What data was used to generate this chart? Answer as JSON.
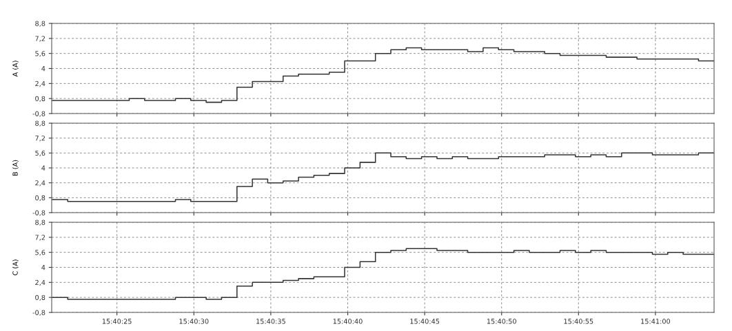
{
  "chart_data": [
    {
      "type": "step",
      "ylabel": "A (A)",
      "tick_labels": "y",
      "grid": true,
      "line_style": "solid",
      "x": [
        15.672444,
        15.672722,
        15.673,
        15.673278,
        15.673556,
        15.673833,
        15.674111,
        15.674389,
        15.674667,
        15.674944,
        15.675222,
        15.6755,
        15.675778,
        15.676056,
        15.676333,
        15.676611,
        15.676889,
        15.677167,
        15.677444,
        15.677722,
        15.678,
        15.678278,
        15.678556,
        15.678833,
        15.679111,
        15.679389,
        15.679667,
        15.679944,
        15.680222,
        15.6805,
        15.680778,
        15.681056,
        15.681333,
        15.681611,
        15.681889,
        15.682167,
        15.682444,
        15.682722,
        15.683,
        15.683278,
        15.683556,
        15.683833,
        15.684111,
        15.684389
      ],
      "series": [
        {
          "color": "#333333",
          "values": [
            0.6,
            0.6,
            0.6,
            0.6,
            0.6,
            0.8,
            0.6,
            0.6,
            0.8,
            0.6,
            0.4,
            0.6,
            2.0,
            2.6,
            2.6,
            3.2,
            3.4,
            3.4,
            3.6,
            4.8,
            4.8,
            5.6,
            6.0,
            6.2,
            6.0,
            6.0,
            6.0,
            5.8,
            6.2,
            6.0,
            5.8,
            5.8,
            5.6,
            5.4,
            5.4,
            5.4,
            5.2,
            5.2,
            5.0,
            5.0,
            5.0,
            5.0,
            4.8,
            4.8
          ]
        }
      ],
      "xlim": [
        15.672433,
        15.684392
      ],
      "xticks": [
        {
          "value": 15.673611,
          "label": null
        },
        {
          "value": 15.675,
          "label": null
        },
        {
          "value": 15.676389,
          "label": null
        },
        {
          "value": 15.677778,
          "label": null
        },
        {
          "value": 15.679167,
          "label": null
        },
        {
          "value": 15.680556,
          "label": null
        },
        {
          "value": 15.681944,
          "label": null
        },
        {
          "value": 15.683333,
          "label": null
        }
      ],
      "ylim": [
        -0.8,
        8.8
      ],
      "yticks": [
        {
          "value": -0.8,
          "label": "-0,8"
        },
        {
          "value": 0.8,
          "label": "0,8"
        },
        {
          "value": 2.4,
          "label": "2,4"
        },
        4,
        {
          "value": 5.6,
          "label": "5,6"
        },
        {
          "value": 7.2,
          "label": "7,2"
        },
        {
          "value": 8.8,
          "label": "8,8"
        }
      ]
    },
    {
      "type": "step",
      "ylabel": "B (A)",
      "tick_labels": "y",
      "grid": true,
      "line_style": "solid",
      "x": [
        15.672444,
        15.672722,
        15.673,
        15.673278,
        15.673556,
        15.673833,
        15.674111,
        15.674389,
        15.674667,
        15.674944,
        15.675222,
        15.6755,
        15.675778,
        15.676056,
        15.676333,
        15.676611,
        15.676889,
        15.677167,
        15.677444,
        15.677722,
        15.678,
        15.678278,
        15.678556,
        15.678833,
        15.679111,
        15.679389,
        15.679667,
        15.679944,
        15.680222,
        15.6805,
        15.680778,
        15.681056,
        15.681333,
        15.681611,
        15.681889,
        15.682167,
        15.682444,
        15.682722,
        15.683,
        15.683278,
        15.683556,
        15.683833,
        15.684111,
        15.684389
      ],
      "series": [
        {
          "color": "#333333",
          "values": [
            0.6,
            0.4,
            0.4,
            0.4,
            0.4,
            0.4,
            0.4,
            0.4,
            0.6,
            0.4,
            0.4,
            0.4,
            2.0,
            2.8,
            2.4,
            2.6,
            3.0,
            3.2,
            3.4,
            4.0,
            4.6,
            5.6,
            5.2,
            5.0,
            5.2,
            5.0,
            5.2,
            5.0,
            5.0,
            5.2,
            5.2,
            5.2,
            5.4,
            5.4,
            5.2,
            5.4,
            5.2,
            5.6,
            5.6,
            5.4,
            5.4,
            5.4,
            5.6,
            5.6
          ]
        }
      ],
      "xlim": [
        15.672433,
        15.684392
      ],
      "xticks": [
        {
          "value": 15.673611,
          "label": null
        },
        {
          "value": 15.675,
          "label": null
        },
        {
          "value": 15.676389,
          "label": null
        },
        {
          "value": 15.677778,
          "label": null
        },
        {
          "value": 15.679167,
          "label": null
        },
        {
          "value": 15.680556,
          "label": null
        },
        {
          "value": 15.681944,
          "label": null
        },
        {
          "value": 15.683333,
          "label": null
        }
      ],
      "ylim": [
        -0.8,
        8.8
      ],
      "yticks": [
        {
          "value": -0.8,
          "label": "-0,8"
        },
        {
          "value": 0.8,
          "label": "0,8"
        },
        {
          "value": 2.4,
          "label": "2,4"
        },
        4,
        {
          "value": 5.6,
          "label": "5,6"
        },
        {
          "value": 7.2,
          "label": "7,2"
        },
        {
          "value": 8.8,
          "label": "8,8"
        }
      ]
    },
    {
      "type": "step",
      "ylabel": "C (A)",
      "grid": true,
      "line_style": "solid",
      "x": [
        15.672444,
        15.672722,
        15.673,
        15.673278,
        15.673556,
        15.673833,
        15.674111,
        15.674389,
        15.674667,
        15.674944,
        15.675222,
        15.6755,
        15.675778,
        15.676056,
        15.676333,
        15.676611,
        15.676889,
        15.677167,
        15.677444,
        15.677722,
        15.678,
        15.678278,
        15.678556,
        15.678833,
        15.679111,
        15.679389,
        15.679667,
        15.679944,
        15.680222,
        15.6805,
        15.680778,
        15.681056,
        15.681333,
        15.681611,
        15.681889,
        15.682167,
        15.682444,
        15.682722,
        15.683,
        15.683278,
        15.683556,
        15.683833,
        15.684111,
        15.684389
      ],
      "series": [
        {
          "color": "#333333",
          "values": [
            0.8,
            0.6,
            0.6,
            0.6,
            0.6,
            0.6,
            0.6,
            0.6,
            0.8,
            0.8,
            0.6,
            0.8,
            2.0,
            2.4,
            2.4,
            2.6,
            2.8,
            3.0,
            3.0,
            4.0,
            4.6,
            5.6,
            5.8,
            6.0,
            6.0,
            5.8,
            5.8,
            5.6,
            5.6,
            5.6,
            5.8,
            5.6,
            5.6,
            5.8,
            5.6,
            5.8,
            5.6,
            5.6,
            5.6,
            5.4,
            5.6,
            5.4,
            5.4,
            5.4
          ]
        }
      ],
      "xlim": [
        15.672433,
        15.684392
      ],
      "xticks": [
        {
          "value": 15.673611,
          "label": "15:40:25"
        },
        {
          "value": 15.675,
          "label": "15:40:30"
        },
        {
          "value": 15.676389,
          "label": "15:40:35"
        },
        {
          "value": 15.677778,
          "label": "15:40:40"
        },
        {
          "value": 15.679167,
          "label": "15:40:45"
        },
        {
          "value": 15.680556,
          "label": "15:40:50"
        },
        {
          "value": 15.681944,
          "label": "15:40:55"
        },
        {
          "value": 15.683333,
          "label": "15:41:00"
        }
      ],
      "ylim": [
        -0.8,
        8.8
      ],
      "yticks": [
        {
          "value": -0.8,
          "label": "-0,8"
        },
        {
          "value": 0.8,
          "label": "0,8"
        },
        {
          "value": 2.4,
          "label": "2,4"
        },
        4,
        {
          "value": 5.6,
          "label": "5,6"
        },
        {
          "value": 7.2,
          "label": "7,2"
        },
        {
          "value": 8.8,
          "label": "8,8"
        }
      ]
    }
  ]
}
